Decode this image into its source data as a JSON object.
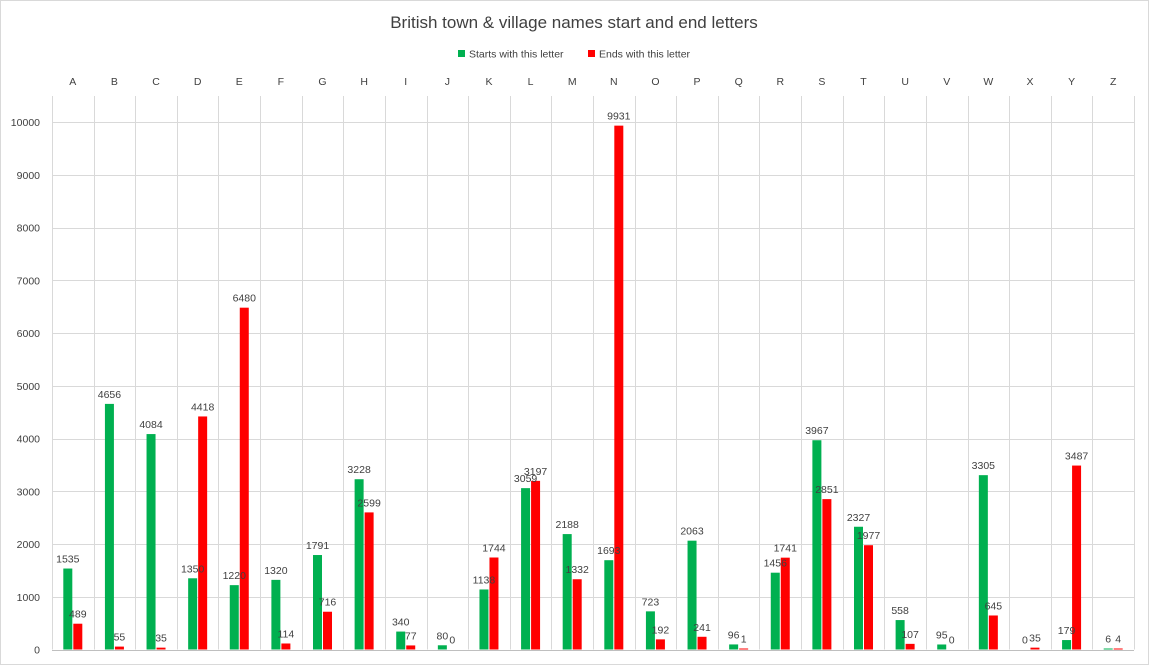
{
  "chart_data": {
    "type": "bar",
    "title": "British town & village names start and end letters",
    "xlabel": "",
    "ylabel": "",
    "ylim": [
      0,
      10500
    ],
    "y_ticks": [
      0,
      1000,
      2000,
      3000,
      4000,
      5000,
      6000,
      7000,
      8000,
      9000,
      10000
    ],
    "grid": true,
    "legend_position": "top",
    "x_axis_position": "top",
    "categories": [
      "A",
      "B",
      "C",
      "D",
      "E",
      "F",
      "G",
      "H",
      "I",
      "J",
      "K",
      "L",
      "M",
      "N",
      "O",
      "P",
      "Q",
      "R",
      "S",
      "T",
      "U",
      "V",
      "W",
      "X",
      "Y",
      "Z"
    ],
    "series": [
      {
        "name": "Starts with this letter",
        "color": "#00b050",
        "values": [
          1535,
          4656,
          4084,
          1350,
          1220,
          1320,
          1791,
          3228,
          340,
          80,
          1138,
          3059,
          2188,
          1693,
          723,
          2063,
          96,
          1456,
          3967,
          2327,
          558,
          95,
          3305,
          0,
          179,
          6
        ]
      },
      {
        "name": "Ends with this letter",
        "color": "#ff0000",
        "values": [
          489,
          55,
          35,
          4418,
          6480,
          114,
          716,
          2599,
          77,
          0,
          1744,
          3197,
          1332,
          9931,
          192,
          241,
          1,
          1741,
          2851,
          1977,
          107,
          0,
          645,
          35,
          3487,
          4
        ]
      }
    ]
  }
}
